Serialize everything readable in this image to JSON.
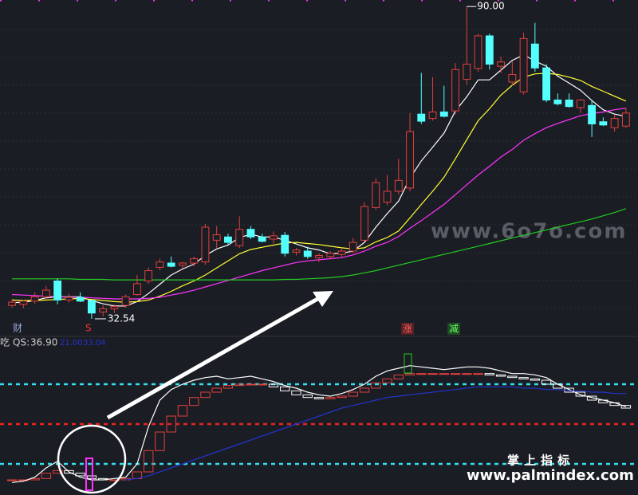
{
  "chart_data": [
    {
      "type": "candlestick",
      "ylim": [
        31.8,
        91.2
      ],
      "open": [
        35.0,
        35.2,
        35.8,
        36.6,
        39.5,
        36.0,
        36.5,
        35.9,
        33.8,
        34.4,
        35.0,
        37.0,
        39.5,
        42.0,
        42.8,
        42.4,
        42.8,
        43.0,
        47.0,
        47.6,
        46.0,
        49.0,
        47.6,
        47.2,
        47.9,
        44.8,
        45.0,
        43.8,
        44.0,
        44.4,
        45.0,
        47.0,
        53.0,
        54.0,
        56.0,
        56.6,
        70.2,
        69.4,
        70.6,
        70.8,
        76.6,
        78.6,
        84.6,
        79.0,
        76.1,
        74.3,
        83.1,
        78.7,
        72.8,
        72.8,
        71.4,
        71.8,
        68.8,
        67.7,
        68.0
      ],
      "high": [
        36.2,
        36.0,
        37.4,
        38.6,
        40.0,
        37.2,
        37.4,
        36.0,
        35.0,
        35.2,
        37.0,
        40.6,
        42.0,
        43.6,
        44.0,
        43.0,
        44.0,
        50.0,
        49.6,
        48.2,
        51.4,
        49.6,
        48.2,
        48.6,
        48.5,
        45.6,
        45.8,
        44.6,
        45.0,
        45.6,
        47.4,
        54.0,
        58.4,
        59.0,
        62.0,
        70.4,
        77.8,
        77.0,
        75.4,
        79.6,
        90.0,
        85.0,
        85.0,
        80.8,
        80.0,
        85.2,
        87.0,
        79.4,
        74.0,
        74.0,
        73.0,
        72.8,
        69.6,
        70.0,
        71.4
      ],
      "low": [
        34.6,
        34.5,
        35.3,
        36.0,
        35.2,
        35.5,
        35.6,
        32.54,
        33.0,
        33.6,
        34.6,
        36.8,
        39.0,
        41.5,
        42.0,
        41.8,
        42.2,
        42.5,
        45.6,
        46.0,
        45.6,
        47.2,
        46.6,
        46.4,
        44.0,
        44.2,
        43.6,
        43.0,
        43.6,
        43.8,
        44.6,
        46.8,
        52.6,
        53.4,
        55.4,
        56.0,
        68.4,
        69.0,
        69.6,
        70.2,
        75.6,
        78.0,
        78.4,
        77.8,
        75.4,
        73.8,
        78.0,
        72.4,
        71.8,
        71.4,
        70.4,
        66.0,
        68.0,
        67.0,
        67.6
      ],
      "close": [
        35.6,
        35.8,
        36.6,
        37.8,
        36.0,
        36.5,
        35.8,
        33.6,
        34.4,
        34.8,
        36.6,
        39.0,
        41.4,
        43.0,
        42.2,
        42.8,
        43.6,
        49.4,
        48.0,
        46.6,
        49.0,
        47.6,
        46.8,
        47.8,
        44.6,
        45.2,
        44.0,
        44.2,
        44.6,
        45.0,
        46.6,
        53.2,
        57.6,
        56.0,
        58.0,
        67.0,
        68.9,
        70.6,
        69.8,
        78.4,
        79.4,
        84.6,
        79.4,
        79.8,
        77.5,
        84.1,
        78.7,
        72.8,
        72.1,
        71.6,
        72.8,
        68.4,
        68.2,
        69.4,
        70.4
      ],
      "up_color": "#e0403c",
      "down_color": "#54ffff",
      "series": [
        {
          "color": "#ffffff",
          "values": [
            35.5,
            35.6,
            35.9,
            36.4,
            36.6,
            36.6,
            36.6,
            35.9,
            35.3,
            34.9,
            34.9,
            35.7,
            37.2,
            38.9,
            40.6,
            41.7,
            42.6,
            44.2,
            45.4,
            46.1,
            47.5,
            48.1,
            47.6,
            47.6,
            47.0,
            46.3,
            45.6,
            45.2,
            44.5,
            44.6,
            45.0,
            46.6,
            49.4,
            51.9,
            54.2,
            58.4,
            61.6,
            64.1,
            66.7,
            70.8,
            73.4,
            76.5,
            76.5,
            78.3,
            80.1,
            81.1,
            80.0,
            79.0,
            77.2,
            75.9,
            74.6,
            72.7,
            71.0,
            70.2,
            69.8
          ]
        },
        {
          "color": "#ffff33",
          "values": [
            36.0,
            35.9,
            35.9,
            36.0,
            36.1,
            36.2,
            36.3,
            36.1,
            35.9,
            35.7,
            35.6,
            35.7,
            36.0,
            36.7,
            37.6,
            38.6,
            39.5,
            40.6,
            41.9,
            43.2,
            44.5,
            45.3,
            45.7,
            46.1,
            46.5,
            46.6,
            46.4,
            46.2,
            45.9,
            45.6,
            45.4,
            45.6,
            46.7,
            47.5,
            48.7,
            51.1,
            53.6,
            56.0,
            58.6,
            62.0,
            65.5,
            69.0,
            71.2,
            73.7,
            75.5,
            77.0,
            77.6,
            77.7,
            77.5,
            77.0,
            76.4,
            75.3,
            74.4,
            73.5,
            72.6
          ]
        },
        {
          "color": "#ff33ff",
          "values": [
            37.0,
            36.9,
            36.8,
            36.7,
            36.6,
            36.5,
            36.5,
            36.4,
            36.3,
            36.2,
            36.2,
            36.2,
            36.3,
            36.5,
            36.9,
            37.3,
            37.8,
            38.4,
            39.0,
            39.6,
            40.2,
            40.8,
            41.4,
            41.9,
            42.4,
            42.9,
            43.2,
            43.4,
            43.6,
            43.8,
            44.3,
            45.0,
            45.9,
            46.6,
            47.7,
            49.2,
            50.6,
            52.1,
            53.6,
            55.4,
            57.2,
            59.0,
            60.6,
            62.3,
            63.7,
            65.4,
            66.6,
            67.7,
            68.5,
            69.2,
            69.9,
            70.3,
            70.6,
            71.0,
            71.3
          ]
        },
        {
          "color": "#22cc22",
          "values": [
            39.9,
            39.9,
            39.9,
            39.9,
            39.9,
            39.9,
            39.8,
            39.8,
            39.8,
            39.7,
            39.7,
            39.7,
            39.7,
            39.7,
            39.7,
            39.7,
            39.7,
            39.7,
            39.7,
            39.7,
            39.7,
            39.7,
            39.7,
            39.7,
            39.8,
            39.8,
            39.9,
            40.0,
            40.1,
            40.3,
            40.6,
            41.0,
            41.4,
            41.9,
            42.4,
            42.9,
            43.4,
            43.9,
            44.4,
            44.9,
            45.4,
            45.9,
            46.4,
            46.9,
            47.4,
            47.9,
            48.4,
            48.9,
            49.4,
            49.9,
            50.4,
            50.9,
            51.5,
            52.1,
            52.8
          ]
        }
      ],
      "high_mark": {
        "value": 90.0,
        "label": "90.00"
      },
      "low_mark": {
        "value": 32.54,
        "label": "32.54"
      },
      "signals": [
        "财",
        "S",
        "涨",
        "减"
      ]
    },
    {
      "type": "line",
      "ylim": [
        -3.4,
        108.2
      ],
      "header": {
        "fragment": "吃",
        "label": "QS:",
        "value": "36.90",
        "extra": [
          "21.00",
          "33.04"
        ]
      },
      "levels": [
        {
          "value": 80,
          "color": "#33e0ee"
        },
        {
          "value": 50,
          "color": "#ee2222"
        },
        {
          "value": 20,
          "color": "#33e0ee"
        }
      ],
      "series": [
        {
          "color": "#ffffff",
          "values": [
            6,
            7,
            10,
            17,
            22,
            14,
            10,
            8,
            8,
            9,
            10,
            20,
            48,
            68,
            76,
            80,
            83,
            85,
            86,
            84,
            85,
            86,
            84,
            82,
            79,
            77,
            74,
            72,
            71,
            73,
            76,
            80,
            86,
            90,
            92,
            94,
            93,
            92,
            91,
            92,
            93,
            93,
            92,
            90,
            88,
            88,
            87,
            85,
            80,
            76,
            72,
            70,
            68,
            66,
            63
          ]
        },
        {
          "color": "#2233cc",
          "values": [
            null,
            null,
            null,
            null,
            null,
            null,
            null,
            null,
            null,
            null,
            8,
            9,
            11,
            14,
            17,
            20,
            23,
            26,
            29,
            32,
            35,
            38,
            41,
            44,
            47,
            50,
            53,
            56,
            59,
            62,
            64,
            66,
            68,
            70,
            71,
            72,
            73,
            74,
            75,
            76,
            77,
            78,
            78,
            78,
            78,
            77,
            77,
            76,
            76,
            75,
            75,
            74,
            74,
            73,
            73
          ]
        }
      ],
      "boxes": {
        "up_color": "#e0403c",
        "down_color": "#ffffff",
        "values": [
          8,
          8,
          9,
          13,
          15,
          13,
          11,
          9,
          8,
          8,
          9,
          14,
          30,
          44,
          56,
          64,
          70,
          74,
          77,
          79,
          80,
          80,
          80,
          78,
          75,
          72,
          70,
          69,
          70,
          71,
          74,
          77,
          81,
          84,
          87,
          88,
          88,
          88,
          88,
          88,
          88,
          88,
          87,
          86,
          85,
          84,
          83,
          80,
          77,
          74,
          71,
          68,
          66,
          64,
          62
        ]
      }
    }
  ],
  "watermarks": {
    "site": "www.6o7o.com",
    "brand": "掌上指标",
    "url": "www.palmindex.com"
  }
}
